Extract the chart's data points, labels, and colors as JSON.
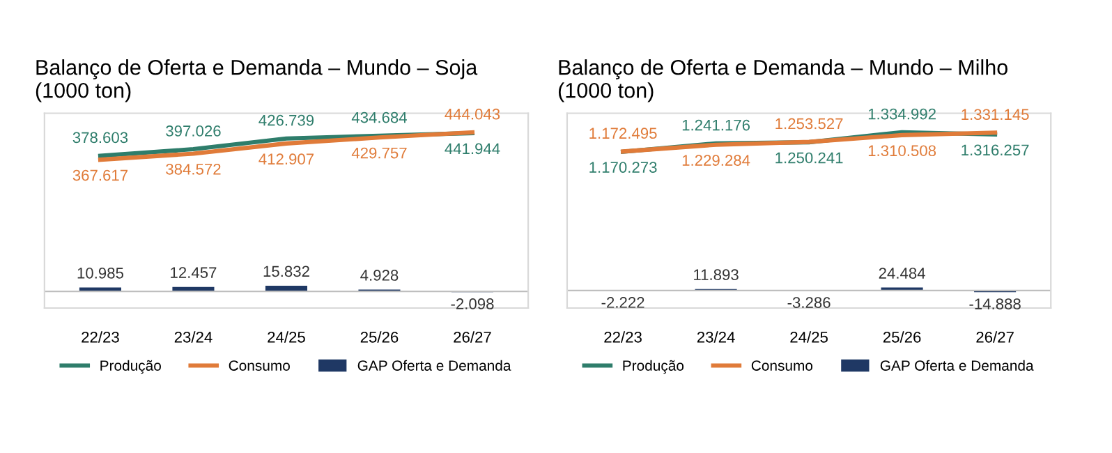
{
  "chart_data": [
    {
      "type": "line",
      "title": "Balanço de Oferta e Demanda – Mundo – Soja\n(1000 ton)",
      "categories": [
        "22/23",
        "23/24",
        "24/25",
        "25/26",
        "26/27"
      ],
      "data_labels": true,
      "legend": "bottom",
      "grid": false,
      "series": [
        {
          "name": "Produção",
          "color": "#2e7d6b",
          "values": [
            378603,
            397026,
            426739,
            434684,
            441944
          ],
          "value_labels": [
            "378.603",
            "397.026",
            "426.739",
            "434.684",
            "441.944"
          ]
        },
        {
          "name": "Consumo",
          "color": "#e07b39",
          "values": [
            367617,
            384572,
            412907,
            429757,
            444043
          ],
          "value_labels": [
            "367.617",
            "384.572",
            "412.907",
            "429.757",
            "444.043"
          ]
        },
        {
          "name": "GAP Oferta e Demanda",
          "type": "bar",
          "color": "#1f3864",
          "values": [
            10985,
            12457,
            15832,
            4928,
            -2098
          ],
          "value_labels": [
            "10.985",
            "12.457",
            "15.832",
            "4.928",
            "-2.098"
          ]
        }
      ]
    },
    {
      "type": "line",
      "title": "Balanço de Oferta e Demanda – Mundo – Milho\n(1000 ton)",
      "categories": [
        "22/23",
        "23/24",
        "24/25",
        "25/26",
        "26/27"
      ],
      "data_labels": true,
      "legend": "bottom",
      "grid": false,
      "series": [
        {
          "name": "Produção",
          "color": "#2e7d6b",
          "values": [
            1170273,
            1241176,
            1250241,
            1334992,
            1316257
          ],
          "value_labels": [
            "1.170.273",
            "1.241.176",
            "1.250.241",
            "1.334.992",
            "1.316.257"
          ]
        },
        {
          "name": "Consumo",
          "color": "#e07b39",
          "values": [
            1172495,
            1229284,
            1253527,
            1310508,
            1331145
          ],
          "value_labels": [
            "1.172.495",
            "1.229.284",
            "1.253.527",
            "1.310.508",
            "1.331.145"
          ]
        },
        {
          "name": "GAP Oferta e Demanda",
          "type": "bar",
          "color": "#1f3864",
          "values": [
            -2222,
            11893,
            -3286,
            24484,
            -14888
          ],
          "value_labels": [
            "-2.222",
            "11.893",
            "-3.286",
            "24.484",
            "-14.888"
          ]
        }
      ]
    }
  ]
}
